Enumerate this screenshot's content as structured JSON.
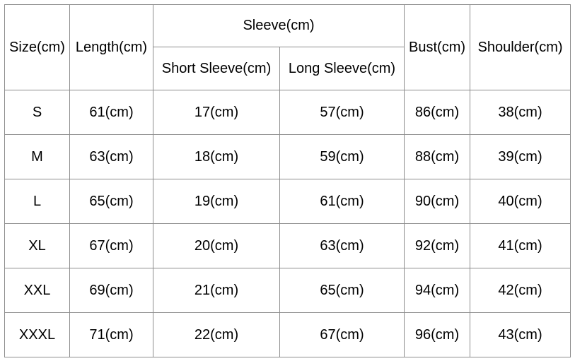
{
  "table": {
    "headers": {
      "size": "Size(cm)",
      "length": "Length(cm)",
      "sleeve": "Sleeve(cm)",
      "short_sleeve": "Short Sleeve(cm)",
      "long_sleeve": "Long Sleeve(cm)",
      "bust": "Bust(cm)",
      "shoulder": "Shoulder(cm)"
    },
    "rows": [
      [
        "S",
        "61(cm)",
        "17(cm)",
        "57(cm)",
        "86(cm)",
        "38(cm)"
      ],
      [
        "M",
        "63(cm)",
        "18(cm)",
        "59(cm)",
        "88(cm)",
        "39(cm)"
      ],
      [
        "L",
        "65(cm)",
        "19(cm)",
        "61(cm)",
        "90(cm)",
        "40(cm)"
      ],
      [
        "XL",
        "67(cm)",
        "20(cm)",
        "63(cm)",
        "92(cm)",
        "41(cm)"
      ],
      [
        "XXL",
        "69(cm)",
        "21(cm)",
        "65(cm)",
        "94(cm)",
        "42(cm)"
      ],
      [
        "XXXL",
        "71(cm)",
        "22(cm)",
        "67(cm)",
        "96(cm)",
        "43(cm)"
      ]
    ]
  }
}
